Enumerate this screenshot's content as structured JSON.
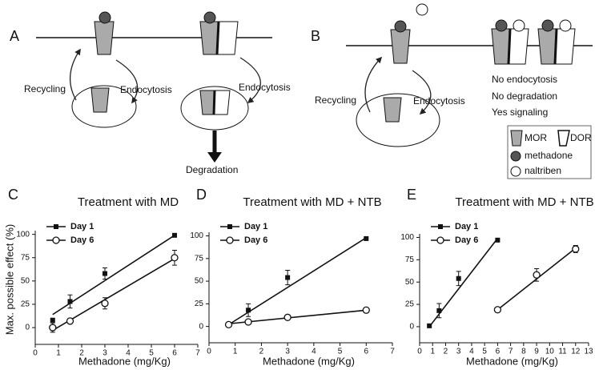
{
  "panel_a": {
    "label": "A",
    "recycling": "Recycling",
    "endocytosis_left": "Endocytosis",
    "endocytosis_right": "Endocytosis",
    "degradation": "Degradation"
  },
  "panel_b": {
    "label": "B",
    "recycling": "Recycling",
    "endocytosis": "Endocytosis",
    "notes": [
      "No endocytosis",
      "No degradation",
      "Yes signaling"
    ],
    "legend": {
      "mor": "MOR",
      "dor": "DOR",
      "methadone": "methadone",
      "naltriben": "naltriben"
    }
  },
  "chart_data": [
    {
      "type": "scatter",
      "label": "C",
      "title": "Treatment with MD",
      "xlabel": "Methadone (mg/Kg)",
      "ylabel": "Max. possible effect (%)",
      "xlim": [
        0,
        7
      ],
      "xticks": [
        0,
        1,
        2,
        3,
        4,
        5,
        6,
        7
      ],
      "ylim": [
        -18,
        104
      ],
      "yticks": [
        0,
        25,
        50,
        75,
        100
      ],
      "series": [
        {
          "name": "Day 1",
          "marker": "square",
          "color": "#111111",
          "x": [
            0.75,
            1.5,
            3,
            6
          ],
          "values": [
            8,
            28,
            58,
            99
          ],
          "errors": [
            null,
            7,
            6,
            null
          ],
          "fit": {
            "x": [
              0.75,
              6
            ],
            "y": [
              14,
              99
            ]
          }
        },
        {
          "name": "Day 6",
          "marker": "circle",
          "color": "#111111",
          "x": [
            0.75,
            1.5,
            3,
            6
          ],
          "values": [
            0,
            7,
            26,
            75
          ],
          "errors": [
            5,
            null,
            6,
            8
          ],
          "fit": {
            "x": [
              0.75,
              6
            ],
            "y": [
              -3,
              74
            ]
          }
        }
      ]
    },
    {
      "type": "scatter",
      "label": "D",
      "title": "Treatment with MD + NTB",
      "xlabel": "Methadone (mg/Kg)",
      "xlim": [
        0,
        7
      ],
      "xticks": [
        0,
        1,
        2,
        3,
        4,
        5,
        6,
        7
      ],
      "ylim": [
        -18,
        104
      ],
      "yticks": [
        0,
        25,
        50,
        75,
        100
      ],
      "series": [
        {
          "name": "Day 1",
          "marker": "square",
          "color": "#111111",
          "x": [
            0.75,
            1.5,
            3,
            6
          ],
          "values": [
            2,
            18,
            54,
            97
          ],
          "errors": [
            null,
            7,
            8,
            null
          ],
          "fit": {
            "x": [
              0.75,
              6
            ],
            "y": [
              2,
              98
            ]
          }
        },
        {
          "name": "Day 6",
          "marker": "circle",
          "color": "#111111",
          "x": [
            0.75,
            1.5,
            3,
            6
          ],
          "values": [
            2,
            5,
            10,
            18
          ],
          "fit": {
            "x": [
              0.75,
              6
            ],
            "y": [
              3,
              18
            ]
          }
        }
      ]
    },
    {
      "type": "scatter",
      "label": "E",
      "title": "Treatment with MD + NTB",
      "xlabel": "Methadone (mg/Kg)",
      "xlim": [
        0,
        13
      ],
      "xticks": [
        0,
        1,
        2,
        3,
        4,
        5,
        6,
        7,
        8,
        9,
        10,
        11,
        12,
        13
      ],
      "ylim": [
        -18,
        104
      ],
      "yticks": [
        0,
        25,
        50,
        75,
        100
      ],
      "series": [
        {
          "name": "Day 1",
          "marker": "square",
          "color": "#111111",
          "x": [
            0.75,
            1.5,
            3,
            6
          ],
          "values": [
            1,
            18,
            54,
            97
          ],
          "errors": [
            null,
            8,
            8,
            null
          ],
          "fit": {
            "x": [
              0.75,
              6
            ],
            "y": [
              0,
              99
            ]
          }
        },
        {
          "name": "Day 6",
          "marker": "circle",
          "color": "#111111",
          "x": [
            6,
            9,
            12
          ],
          "values": [
            19,
            58,
            87
          ],
          "errors": [
            null,
            7,
            4
          ],
          "fit": {
            "x": [
              6,
              12
            ],
            "y": [
              19,
              88
            ]
          }
        }
      ]
    }
  ]
}
